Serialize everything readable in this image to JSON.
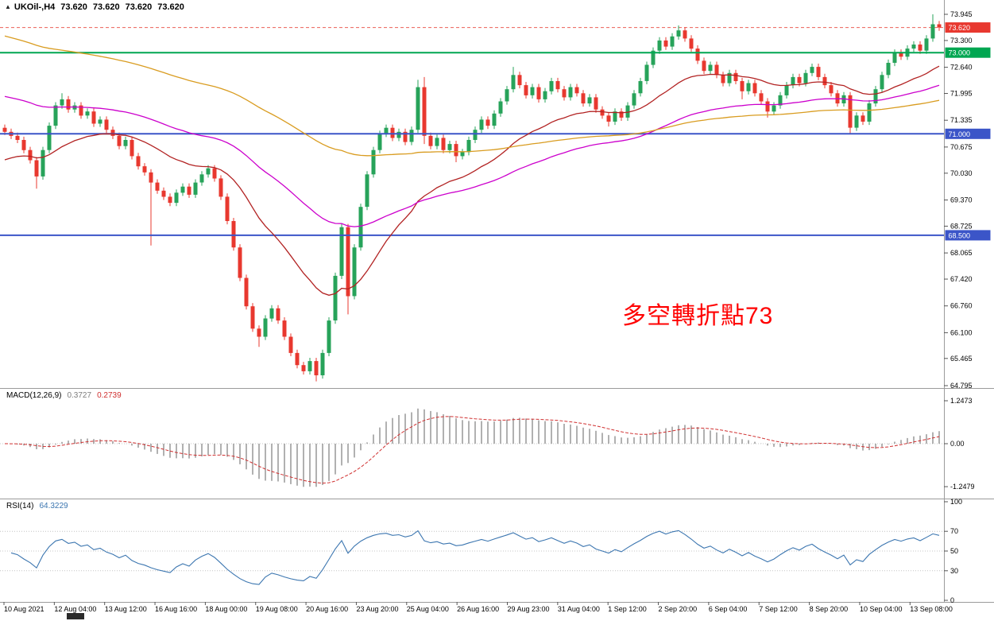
{
  "header": {
    "expand_icon": "▲",
    "symbol_label": "UKOil-,H4",
    "open": "73.620",
    "high": "73.620",
    "low": "73.620",
    "close": "73.620"
  },
  "annotation": {
    "text": "多空轉折點73",
    "color": "#ff0000"
  },
  "price_axis": {
    "ticks": [
      "73.945",
      "73.300",
      "72.640",
      "71.995",
      "71.335",
      "70.675",
      "70.030",
      "69.370",
      "68.725",
      "68.065",
      "67.420",
      "66.760",
      "66.100",
      "65.465",
      "64.795"
    ],
    "tags": [
      {
        "value": "73.620",
        "price": 73.62,
        "bg": "#e8382f",
        "fg": "#ffffff"
      },
      {
        "value": "73.000",
        "price": 73.0,
        "bg": "#00a651",
        "fg": "#ffffff"
      },
      {
        "value": "71.000",
        "price": 71.0,
        "bg": "#3b55c8",
        "fg": "#ffffff"
      },
      {
        "value": "68.500",
        "price": 68.5,
        "bg": "#3b55c8",
        "fg": "#ffffff"
      }
    ]
  },
  "time_axis": {
    "labels": [
      "10 Aug 2021",
      "12 Aug 04:00",
      "13 Aug 12:00",
      "16 Aug 16:00",
      "18 Aug 00:00",
      "19 Aug 08:00",
      "20 Aug 16:00",
      "23 Aug 20:00",
      "25 Aug 04:00",
      "26 Aug 16:00",
      "29 Aug 23:00",
      "31 Aug 04:00",
      "1 Sep 12:00",
      "2 Sep 20:00",
      "6 Sep 04:00",
      "7 Sep 12:00",
      "8 Sep 20:00",
      "10 Sep 04:00",
      "13 Sep 08:00"
    ]
  },
  "chart_data": {
    "type": "candlestick",
    "title": "UKOil- H4 chart with MACD and RSI subwindows",
    "symbol": "UKOil-",
    "timeframe": "H4",
    "price_range": [
      64.795,
      73.945
    ],
    "open_first": 71.15,
    "closes": [
      71.05,
      70.95,
      70.85,
      70.6,
      70.35,
      69.95,
      70.6,
      71.2,
      71.7,
      71.85,
      71.6,
      71.7,
      71.45,
      71.55,
      71.25,
      71.35,
      71.1,
      70.95,
      70.7,
      70.85,
      70.45,
      70.2,
      70.05,
      69.8,
      69.6,
      69.45,
      69.3,
      69.55,
      69.7,
      69.5,
      69.8,
      70.0,
      70.15,
      69.9,
      69.45,
      68.85,
      68.2,
      67.45,
      66.75,
      66.2,
      66.0,
      66.45,
      66.7,
      66.4,
      66.0,
      65.6,
      65.3,
      65.15,
      65.4,
      65.05,
      65.6,
      66.4,
      67.5,
      68.7,
      67.0,
      68.2,
      69.2,
      70.0,
      70.6,
      71.0,
      71.15,
      70.9,
      71.05,
      70.8,
      71.1,
      72.15,
      70.95,
      70.7,
      70.9,
      70.6,
      70.75,
      70.45,
      70.55,
      70.85,
      71.1,
      71.35,
      71.2,
      71.5,
      71.8,
      72.1,
      72.45,
      72.2,
      71.95,
      72.15,
      71.85,
      72.05,
      72.3,
      72.1,
      71.9,
      72.15,
      72.0,
      71.75,
      71.9,
      71.6,
      71.45,
      71.3,
      71.55,
      71.4,
      71.7,
      72.0,
      72.3,
      72.7,
      73.05,
      73.3,
      73.15,
      73.4,
      73.55,
      73.35,
      73.1,
      72.8,
      72.55,
      72.7,
      72.45,
      72.25,
      72.5,
      72.3,
      72.05,
      72.25,
      72.0,
      71.8,
      71.55,
      71.7,
      71.95,
      72.2,
      72.4,
      72.25,
      72.5,
      72.65,
      72.4,
      72.2,
      72.0,
      71.75,
      71.95,
      71.15,
      71.45,
      71.3,
      71.75,
      72.1,
      72.45,
      72.75,
      73.0,
      72.9,
      73.1,
      73.2,
      73.05,
      73.35,
      73.7,
      73.62
    ],
    "wick_overrides": {
      "5": {
        "dn": 0.3
      },
      "9": {
        "up": 0.15
      },
      "23": {
        "dn": 1.55
      },
      "40": {
        "dn": 0.25
      },
      "49": {
        "dn": 0.15
      },
      "54": {
        "dn": 0.45
      },
      "65": {
        "up": 0.18
      },
      "66": {
        "up": 0.25,
        "dn": 0.2
      },
      "71": {
        "dn": 0.15
      },
      "80": {
        "up": 0.2
      },
      "95": {
        "dn": 0.12
      },
      "106": {
        "up": 0.12
      },
      "116": {
        "dn": 0.2
      },
      "120": {
        "dn": 0.15
      },
      "133": {
        "dn": 0.15
      },
      "146": {
        "up": 0.245
      }
    },
    "hlines": [
      {
        "price": 73.0,
        "color": "#00a651",
        "width": 2
      },
      {
        "price": 71.0,
        "color": "#3b55c8",
        "width": 2
      },
      {
        "price": 68.5,
        "color": "#3b55c8",
        "width": 2
      }
    ],
    "bid_line": {
      "price": 73.62,
      "color": "#e8382f"
    },
    "moving_averages": [
      {
        "name": "fast",
        "period": 24,
        "seed": 70.3,
        "color": "#b22222"
      },
      {
        "name": "mid",
        "period": 60,
        "seed": 71.95,
        "color": "#cc00cc"
      },
      {
        "name": "slow",
        "period": 120,
        "seed": 73.45,
        "color": "#d99c20"
      }
    ],
    "macd": {
      "label": "MACD(12,26,9)",
      "value": "0.3727",
      "signal_value": "0.2739",
      "fast": 12,
      "slow": 26,
      "signal": 9,
      "axis": [
        "1.2473",
        "0.00",
        "-1.2479"
      ],
      "hist_color": "#7d7d7d",
      "signal_color": "#d03030",
      "value_color": "#7d7d7d"
    },
    "rsi": {
      "label": "RSI(14)",
      "value": "64.3229",
      "period": 14,
      "levels": [
        30,
        50,
        70
      ],
      "axis": [
        "100",
        "70",
        "50",
        "30",
        "0"
      ],
      "color": "#3c76b0"
    },
    "candle_up_color": "#27a35a",
    "candle_down_color": "#e8382f",
    "grid": "off",
    "background": "#ffffff"
  },
  "scrollbar": {
    "thumb_color": "#2a2a2a"
  }
}
